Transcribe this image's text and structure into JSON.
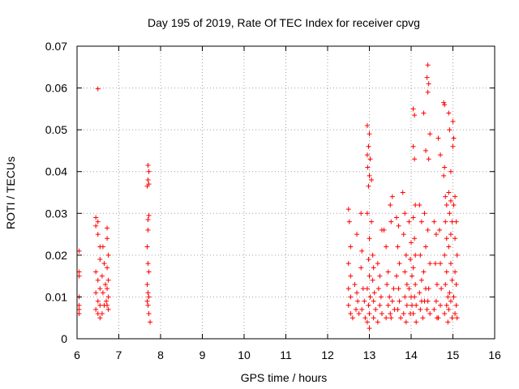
{
  "chart_data": {
    "type": "scatter",
    "title": "Day 195 of 2019, Rate Of TEC Index for receiver cpvg",
    "xlabel": "GPS time / hours",
    "ylabel": "ROTI / TECUs",
    "xlim": [
      6,
      16
    ],
    "ylim": [
      0,
      0.07
    ],
    "xticks": [
      6,
      7,
      8,
      9,
      10,
      11,
      12,
      13,
      14,
      15,
      16
    ],
    "xtick_labels": [
      "6",
      "7",
      "8",
      "9",
      "10",
      "11",
      "12",
      "13",
      "14",
      "15",
      "16"
    ],
    "yticks": [
      0,
      0.01,
      0.02,
      0.03,
      0.04,
      0.05,
      0.06,
      0.07
    ],
    "ytick_labels": [
      "0",
      "0.01",
      "0.02",
      "0.03",
      "0.04",
      "0.05",
      "0.06",
      "0.07"
    ],
    "grid": true,
    "marker": "plus",
    "series": [
      {
        "name": "ROTI",
        "color": "#ff0000",
        "points": [
          [
            6.05,
            0.021
          ],
          [
            6.05,
            0.016
          ],
          [
            6.05,
            0.015
          ],
          [
            6.05,
            0.01
          ],
          [
            6.05,
            0.008
          ],
          [
            6.05,
            0.007
          ],
          [
            6.05,
            0.006
          ],
          [
            6.5,
            0.0598
          ],
          [
            6.45,
            0.029
          ],
          [
            6.45,
            0.027
          ],
          [
            6.5,
            0.028
          ],
          [
            6.5,
            0.025
          ],
          [
            6.55,
            0.022
          ],
          [
            6.55,
            0.019
          ],
          [
            6.45,
            0.016
          ],
          [
            6.5,
            0.014
          ],
          [
            6.55,
            0.012
          ],
          [
            6.45,
            0.011
          ],
          [
            6.5,
            0.009
          ],
          [
            6.55,
            0.008
          ],
          [
            6.45,
            0.007
          ],
          [
            6.5,
            0.006
          ],
          [
            6.55,
            0.005
          ],
          [
            6.62,
            0.022
          ],
          [
            6.65,
            0.018
          ],
          [
            6.6,
            0.015
          ],
          [
            6.68,
            0.013
          ],
          [
            6.62,
            0.011
          ],
          [
            6.7,
            0.009
          ],
          [
            6.65,
            0.008
          ],
          [
            6.6,
            0.006
          ],
          [
            6.72,
            0.0265
          ],
          [
            6.72,
            0.024
          ],
          [
            6.75,
            0.02
          ],
          [
            6.72,
            0.017
          ],
          [
            6.75,
            0.014
          ],
          [
            6.72,
            0.012
          ],
          [
            6.75,
            0.01
          ],
          [
            6.72,
            0.008
          ],
          [
            6.75,
            0.007
          ],
          [
            7.7,
            0.0415
          ],
          [
            7.72,
            0.04
          ],
          [
            7.7,
            0.038
          ],
          [
            7.72,
            0.037
          ],
          [
            7.68,
            0.0365
          ],
          [
            7.72,
            0.0295
          ],
          [
            7.7,
            0.0285
          ],
          [
            7.7,
            0.026
          ],
          [
            7.68,
            0.022
          ],
          [
            7.7,
            0.018
          ],
          [
            7.72,
            0.016
          ],
          [
            7.68,
            0.013
          ],
          [
            7.7,
            0.011
          ],
          [
            7.72,
            0.01
          ],
          [
            7.68,
            0.009
          ],
          [
            7.7,
            0.008
          ],
          [
            7.72,
            0.006
          ],
          [
            7.75,
            0.004
          ],
          [
            12.5,
            0.031
          ],
          [
            12.52,
            0.028
          ],
          [
            12.55,
            0.022
          ],
          [
            12.5,
            0.018
          ],
          [
            12.55,
            0.015
          ],
          [
            12.5,
            0.012
          ],
          [
            12.55,
            0.01
          ],
          [
            12.5,
            0.008
          ],
          [
            12.55,
            0.006
          ],
          [
            12.6,
            0.005
          ],
          [
            12.65,
            0.013
          ],
          [
            12.7,
            0.011
          ],
          [
            12.72,
            0.009
          ],
          [
            12.68,
            0.007
          ],
          [
            12.75,
            0.006
          ],
          [
            12.7,
            0.025
          ],
          [
            12.8,
            0.03
          ],
          [
            12.82,
            0.021
          ],
          [
            12.8,
            0.017
          ],
          [
            12.85,
            0.012
          ],
          [
            12.88,
            0.009
          ],
          [
            12.82,
            0.007
          ],
          [
            12.9,
            0.005
          ],
          [
            12.95,
            0.051
          ],
          [
            13.0,
            0.049
          ],
          [
            12.98,
            0.046
          ],
          [
            12.95,
            0.044
          ],
          [
            13.02,
            0.043
          ],
          [
            12.96,
            0.041
          ],
          [
            13.0,
            0.039
          ],
          [
            12.98,
            0.0365
          ],
          [
            13.05,
            0.038
          ],
          [
            12.95,
            0.03
          ],
          [
            13.0,
            0.024
          ],
          [
            12.98,
            0.019
          ],
          [
            13.0,
            0.015
          ],
          [
            12.95,
            0.012
          ],
          [
            13.02,
            0.01
          ],
          [
            12.98,
            0.008
          ],
          [
            13.0,
            0.006
          ],
          [
            12.95,
            0.004
          ],
          [
            13.0,
            0.0025
          ],
          [
            13.05,
            0.028
          ],
          [
            13.08,
            0.02
          ],
          [
            13.1,
            0.017
          ],
          [
            13.08,
            0.014
          ],
          [
            13.12,
            0.011
          ],
          [
            13.1,
            0.009
          ],
          [
            13.15,
            0.007
          ],
          [
            13.1,
            0.005
          ],
          [
            13.2,
            0.018
          ],
          [
            13.25,
            0.015
          ],
          [
            13.22,
            0.012
          ],
          [
            13.28,
            0.01
          ],
          [
            13.25,
            0.008
          ],
          [
            13.3,
            0.006
          ],
          [
            13.2,
            0.004
          ],
          [
            13.3,
            0.026
          ],
          [
            13.35,
            0.026
          ],
          [
            13.4,
            0.022
          ],
          [
            13.45,
            0.016
          ],
          [
            13.42,
            0.013
          ],
          [
            13.48,
            0.01
          ],
          [
            13.45,
            0.008
          ],
          [
            13.5,
            0.006
          ],
          [
            13.4,
            0.005
          ],
          [
            13.5,
            0.032
          ],
          [
            13.55,
            0.034
          ],
          [
            13.52,
            0.028
          ],
          [
            13.58,
            0.012
          ],
          [
            13.55,
            0.009
          ],
          [
            13.6,
            0.007
          ],
          [
            13.52,
            0.005
          ],
          [
            13.65,
            0.029
          ],
          [
            13.7,
            0.027
          ],
          [
            13.68,
            0.022
          ],
          [
            13.72,
            0.018
          ],
          [
            13.65,
            0.015
          ],
          [
            13.7,
            0.012
          ],
          [
            13.72,
            0.009
          ],
          [
            13.68,
            0.007
          ],
          [
            13.75,
            0.005
          ],
          [
            13.8,
            0.035
          ],
          [
            13.85,
            0.03
          ],
          [
            13.82,
            0.025
          ],
          [
            13.88,
            0.02
          ],
          [
            13.85,
            0.016
          ],
          [
            13.9,
            0.013
          ],
          [
            13.85,
            0.01
          ],
          [
            13.9,
            0.008
          ],
          [
            13.82,
            0.006
          ],
          [
            13.88,
            0.004
          ],
          [
            13.95,
            0.028
          ],
          [
            14.0,
            0.023
          ],
          [
            13.98,
            0.019
          ],
          [
            14.02,
            0.015
          ],
          [
            13.95,
            0.012
          ],
          [
            14.0,
            0.01
          ],
          [
            14.02,
            0.008
          ],
          [
            13.98,
            0.006
          ],
          [
            14.05,
            0.055
          ],
          [
            14.08,
            0.0535
          ],
          [
            14.05,
            0.046
          ],
          [
            14.08,
            0.043
          ],
          [
            14.1,
            0.032
          ],
          [
            14.05,
            0.029
          ],
          [
            14.08,
            0.024
          ],
          [
            14.1,
            0.02
          ],
          [
            14.05,
            0.017
          ],
          [
            14.1,
            0.013
          ],
          [
            14.08,
            0.01
          ],
          [
            14.12,
            0.008
          ],
          [
            14.05,
            0.006
          ],
          [
            14.12,
            0.004
          ],
          [
            14.2,
            0.032
          ],
          [
            14.25,
            0.028
          ],
          [
            14.22,
            0.02
          ],
          [
            14.25,
            0.014
          ],
          [
            14.2,
            0.011
          ],
          [
            14.25,
            0.009
          ],
          [
            14.22,
            0.007
          ],
          [
            14.28,
            0.005
          ],
          [
            14.3,
            0.054
          ],
          [
            14.35,
            0.045
          ],
          [
            14.32,
            0.03
          ],
          [
            14.35,
            0.022
          ],
          [
            14.3,
            0.016
          ],
          [
            14.35,
            0.012
          ],
          [
            14.32,
            0.009
          ],
          [
            14.38,
            0.007
          ],
          [
            14.4,
            0.0655
          ],
          [
            14.38,
            0.0625
          ],
          [
            14.42,
            0.061
          ],
          [
            14.4,
            0.059
          ],
          [
            14.45,
            0.049
          ],
          [
            14.42,
            0.043
          ],
          [
            14.4,
            0.026
          ],
          [
            14.45,
            0.018
          ],
          [
            14.42,
            0.012
          ],
          [
            14.4,
            0.009
          ],
          [
            14.45,
            0.006
          ],
          [
            14.55,
            0.028
          ],
          [
            14.6,
            0.025
          ],
          [
            14.58,
            0.018
          ],
          [
            14.62,
            0.013
          ],
          [
            14.6,
            0.009
          ],
          [
            14.55,
            0.007
          ],
          [
            14.62,
            0.005
          ],
          [
            14.65,
            0.048
          ],
          [
            14.7,
            0.044
          ],
          [
            14.68,
            0.026
          ],
          [
            14.7,
            0.018
          ],
          [
            14.72,
            0.012
          ],
          [
            14.7,
            0.008
          ],
          [
            14.65,
            0.005
          ],
          [
            14.78,
            0.0565
          ],
          [
            14.8,
            0.056
          ],
          [
            14.78,
            0.039
          ],
          [
            14.8,
            0.041
          ],
          [
            14.82,
            0.034
          ],
          [
            14.85,
            0.032
          ],
          [
            14.82,
            0.028
          ],
          [
            14.85,
            0.024
          ],
          [
            14.8,
            0.02
          ],
          [
            14.85,
            0.016
          ],
          [
            14.82,
            0.013
          ],
          [
            14.88,
            0.01
          ],
          [
            14.85,
            0.008
          ],
          [
            14.8,
            0.006
          ],
          [
            14.88,
            0.004
          ],
          [
            14.9,
            0.054
          ],
          [
            14.92,
            0.05
          ],
          [
            14.95,
            0.04
          ],
          [
            14.9,
            0.035
          ],
          [
            14.95,
            0.033
          ],
          [
            14.92,
            0.03
          ],
          [
            14.98,
            0.028
          ],
          [
            14.95,
            0.025
          ],
          [
            14.9,
            0.022
          ],
          [
            14.95,
            0.018
          ],
          [
            14.98,
            0.014
          ],
          [
            14.92,
            0.011
          ],
          [
            14.95,
            0.009
          ],
          [
            14.9,
            0.007
          ],
          [
            14.98,
            0.005
          ],
          [
            15.0,
            0.052
          ],
          [
            15.02,
            0.048
          ],
          [
            15.0,
            0.046
          ],
          [
            15.05,
            0.034
          ],
          [
            15.02,
            0.032
          ],
          [
            15.08,
            0.028
          ],
          [
            15.05,
            0.024
          ],
          [
            15.1,
            0.02
          ],
          [
            15.05,
            0.016
          ],
          [
            15.08,
            0.013
          ],
          [
            15.02,
            0.01
          ],
          [
            15.08,
            0.008
          ],
          [
            15.05,
            0.006
          ],
          [
            15.1,
            0.005
          ]
        ]
      }
    ]
  }
}
